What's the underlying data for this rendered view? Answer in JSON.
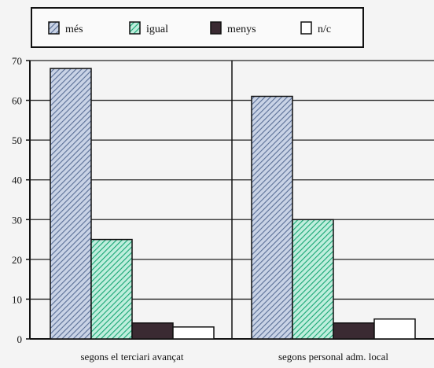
{
  "chart_data": {
    "type": "bar",
    "categories": [
      "segons el terciari avançat",
      "segons personal adm. local"
    ],
    "series": [
      {
        "name": "més",
        "values": [
          68,
          61
        ],
        "color": "#8a9fc4",
        "pattern": "diagonal-hatch"
      },
      {
        "name": "igual",
        "values": [
          25,
          30
        ],
        "color": "#2fbf8f",
        "pattern": "diagonal-hatch"
      },
      {
        "name": "menys",
        "values": [
          4,
          4
        ],
        "color": "#3a2a32",
        "pattern": "solid"
      },
      {
        "name": "n/c",
        "values": [
          3,
          5
        ],
        "color": "#ffffff",
        "pattern": "none"
      }
    ],
    "ylim": [
      0,
      70
    ],
    "yticks": [
      "0",
      "10",
      "20",
      "30",
      "40",
      "50",
      "60",
      "70"
    ],
    "title": "",
    "xlabel": "",
    "ylabel": "",
    "grid": true,
    "legend_position": "top"
  }
}
